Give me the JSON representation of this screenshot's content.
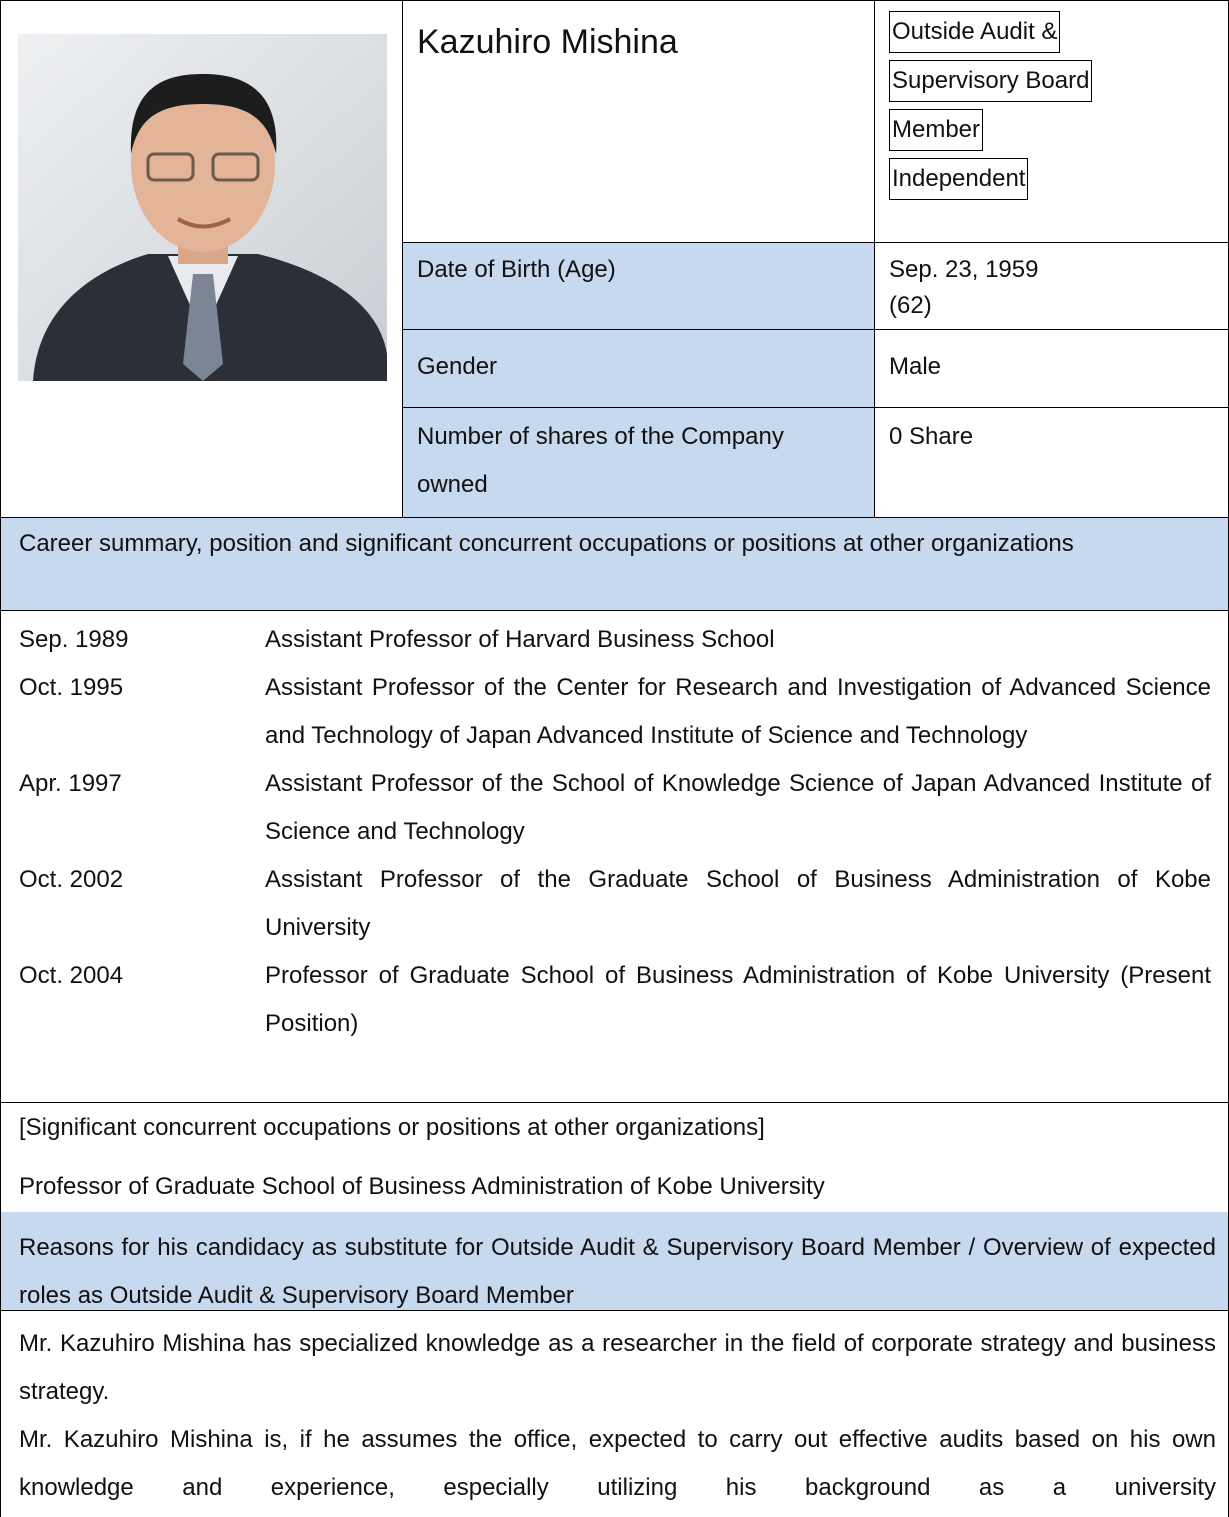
{
  "profile": {
    "name": "Kazuhiro Mishina",
    "titles": [
      "Outside Audit &",
      "Supervisory Board",
      "Member",
      "Independent"
    ],
    "date_of_birth": {
      "label": "Date of Birth (Age)",
      "value": [
        "Sep. 23, 1959",
        "(62)"
      ]
    },
    "gender": {
      "label": "Gender",
      "value": "Male"
    },
    "shares": {
      "label": "Number of shares of the Company owned",
      "value": "0 Share"
    }
  },
  "career": {
    "heading": "Career summary, position and significant concurrent occupations or positions at other organizations",
    "entries": [
      {
        "date": "Sep. 1989",
        "text": "Assistant Professor of Harvard Business School"
      },
      {
        "date": "Oct. 1995",
        "text": "Assistant Professor of the Center for Research and Investigation of Advanced Science and Technology of Japan Advanced Institute of Science and Technology"
      },
      {
        "date": "Apr. 1997",
        "text": "Assistant Professor of the School of Knowledge Science of Japan Advanced Institute of Science and Technology"
      },
      {
        "date": "Oct. 2002",
        "text": "Assistant Professor of the Graduate School of Business Administration of Kobe University"
      },
      {
        "date": "Oct. 2004",
        "text": "Professor of Graduate School of Business Administration of Kobe University (Present Position)"
      }
    ]
  },
  "concurrent": {
    "heading": "[Significant concurrent occupations or positions at other organizations]",
    "text": "Professor of Graduate School of Business Administration of Kobe University"
  },
  "reasons": {
    "heading": "Reasons for his candidacy as substitute for Outside Audit & Supervisory Board Member / Overview of expected roles as Outside Audit & Supervisory Board Member",
    "paragraphs": [
      "Mr. Kazuhiro Mishina has specialized knowledge as a researcher in the field of corporate strategy and business strategy.",
      "Mr. Kazuhiro Mishina is, if he assumes the office, expected to carry out effective audits based on his own knowledge and experience, especially utilizing his background as a university"
    ]
  }
}
